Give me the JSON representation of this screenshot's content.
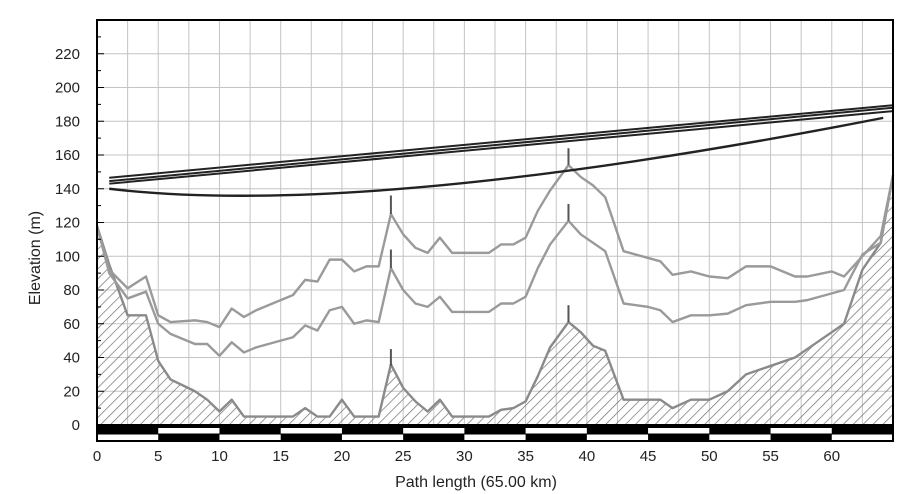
{
  "chart_data": {
    "type": "line",
    "xlabel": "Path length (65.00 km)",
    "ylabel": "Elevation (m)",
    "xlim": [
      0,
      65
    ],
    "ylim": [
      0,
      240
    ],
    "xticks": [
      0,
      5,
      10,
      15,
      20,
      25,
      30,
      35,
      40,
      45,
      50,
      55,
      60
    ],
    "yticks": [
      0,
      20,
      40,
      60,
      80,
      100,
      120,
      140,
      160,
      180,
      200,
      220
    ],
    "grid": true,
    "colors": {
      "terrain": "#8a8a8a",
      "clearance": "#9a9a9a",
      "ray": "#222222",
      "hatch": "#707070"
    },
    "series": [
      {
        "kind": "terrain",
        "x": [
          0,
          1,
          2.5,
          4,
          5,
          6,
          8,
          9,
          10,
          11,
          12,
          13,
          15,
          16,
          17,
          18,
          19,
          20,
          21,
          22,
          23,
          24,
          25,
          26,
          27,
          28,
          29,
          30,
          31,
          32,
          33,
          34,
          35,
          36,
          37,
          38.5,
          39.5,
          40.5,
          41.5,
          43,
          45,
          46,
          47,
          48.5,
          50,
          51.5,
          53,
          55,
          57,
          58,
          60,
          61,
          62.5,
          64,
          65
        ],
        "y": [
          118,
          95,
          65,
          65,
          38,
          27,
          20,
          15,
          8,
          15,
          5,
          5,
          5,
          5,
          10,
          5,
          5,
          15,
          5,
          5,
          5,
          36,
          22,
          14,
          8,
          15,
          5,
          5,
          5,
          5,
          9,
          10,
          14,
          29,
          46,
          61,
          55,
          47,
          44,
          15,
          15,
          15,
          10,
          15,
          15,
          20,
          30,
          35,
          40,
          45,
          55,
          60,
          92,
          108,
          148
        ]
      },
      {
        "kind": "clearance",
        "x": [
          0,
          1,
          2.5,
          4,
          5,
          6,
          8,
          9,
          10,
          11,
          12,
          13,
          15,
          16,
          17,
          18,
          19,
          20,
          21,
          22,
          23,
          24,
          25,
          26,
          27,
          28,
          29,
          30,
          31,
          32,
          33,
          34,
          35,
          36,
          37,
          38.5,
          39.5,
          40.5,
          41.5,
          43,
          45,
          46,
          47,
          48.5,
          50,
          51.5,
          53,
          55,
          57,
          58,
          60,
          61,
          62.5,
          64,
          65
        ],
        "y": [
          118,
          90,
          75,
          79,
          60,
          54,
          48,
          48,
          41,
          49,
          43,
          46,
          50,
          52,
          59,
          56,
          68,
          70,
          60,
          62,
          61,
          93,
          80,
          72,
          70,
          76,
          67,
          67,
          67,
          67,
          72,
          72,
          76,
          93,
          107,
          121,
          113,
          108,
          103,
          72,
          70,
          68,
          61,
          65,
          65,
          66,
          71,
          73,
          73,
          74,
          78,
          80,
          101,
          108,
          148
        ]
      },
      {
        "kind": "clearance",
        "x": [
          0,
          1,
          2.5,
          4,
          5,
          6,
          8,
          9,
          10,
          11,
          12,
          13,
          15,
          16,
          17,
          18,
          19,
          20,
          21,
          22,
          23,
          24,
          25,
          26,
          27,
          28,
          29,
          30,
          31,
          32,
          33,
          34,
          35,
          36,
          37,
          38.5,
          39.5,
          40.5,
          41.5,
          43,
          45,
          46,
          47,
          48.5,
          50,
          51.5,
          53,
          55,
          57,
          58,
          60,
          61,
          62.5,
          64,
          65
        ],
        "y": [
          118,
          92,
          81,
          88,
          65,
          61,
          62,
          61,
          58,
          69,
          64,
          68,
          74,
          77,
          86,
          85,
          98,
          98,
          91,
          94,
          94,
          125,
          113,
          105,
          102,
          111,
          102,
          102,
          102,
          102,
          107,
          107,
          111,
          127,
          139,
          154,
          147,
          142,
          135,
          103,
          99,
          97,
          89,
          91,
          88,
          87,
          94,
          94,
          88,
          88,
          91,
          88,
          100,
          112,
          148
        ]
      },
      {
        "kind": "ray",
        "x": [
          1,
          65
        ],
        "y": [
          146.5,
          189.5
        ]
      },
      {
        "kind": "ray",
        "x": [
          1,
          65
        ],
        "y": [
          144.5,
          188
        ]
      },
      {
        "kind": "ray",
        "x": [
          1,
          65
        ],
        "y": [
          143,
          186
        ]
      }
    ],
    "obstacles": [
      {
        "x": 24,
        "base": 35,
        "top": 45
      },
      {
        "x": 24,
        "base": 93,
        "top": 104
      },
      {
        "x": 24,
        "base": 125,
        "top": 136
      },
      {
        "x": 38.5,
        "base": 61,
        "top": 71
      },
      {
        "x": 38.5,
        "base": 121,
        "top": 131
      },
      {
        "x": 38.5,
        "base": 154,
        "top": 164
      }
    ]
  }
}
